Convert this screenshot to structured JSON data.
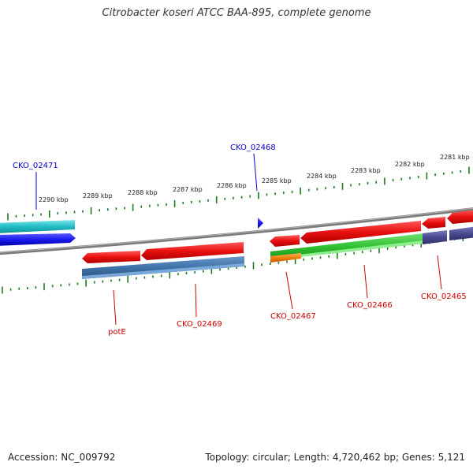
{
  "header": {
    "title": "Citrobacter koseri ATCC BAA-895, complete genome"
  },
  "footer": {
    "accession": "Accession: NC_009792",
    "topology": "Topology: circular; Length: 4,720,462 bp; Genes: 5,121"
  },
  "scale": {
    "tick_labels": [
      "2290 kbp",
      "2289 kbp",
      "2288 kbp",
      "2287 kbp",
      "2286 kbp",
      "2285 kbp",
      "2284 kbp",
      "2283 kbp",
      "2282 kbp",
      "2281 kbp"
    ]
  },
  "genes": {
    "labels": [
      {
        "text": "CKO_02471",
        "color": "#0000cc"
      },
      {
        "text": "CKO_02468",
        "color": "#0000cc"
      },
      {
        "text": "potE",
        "color": "#cc0000"
      },
      {
        "text": "CKO_02469",
        "color": "#cc0000"
      },
      {
        "text": "CKO_02467",
        "color": "#cc0000"
      },
      {
        "text": "CKO_02466",
        "color": "#cc0000"
      },
      {
        "text": "CKO_02465",
        "color": "#cc0000"
      }
    ]
  },
  "colors": {
    "backbone": "#7a7a7a",
    "tick": "#1e7a1e",
    "forward_gene": "#1a1aee",
    "forward_gene_teal": "#22bcc4",
    "reverse_gene": "#e81010",
    "steel_gene": "#3e72a8",
    "green_gene": "#30c030",
    "orange_gene": "#f08010",
    "purple_gene": "#4a4a90"
  }
}
